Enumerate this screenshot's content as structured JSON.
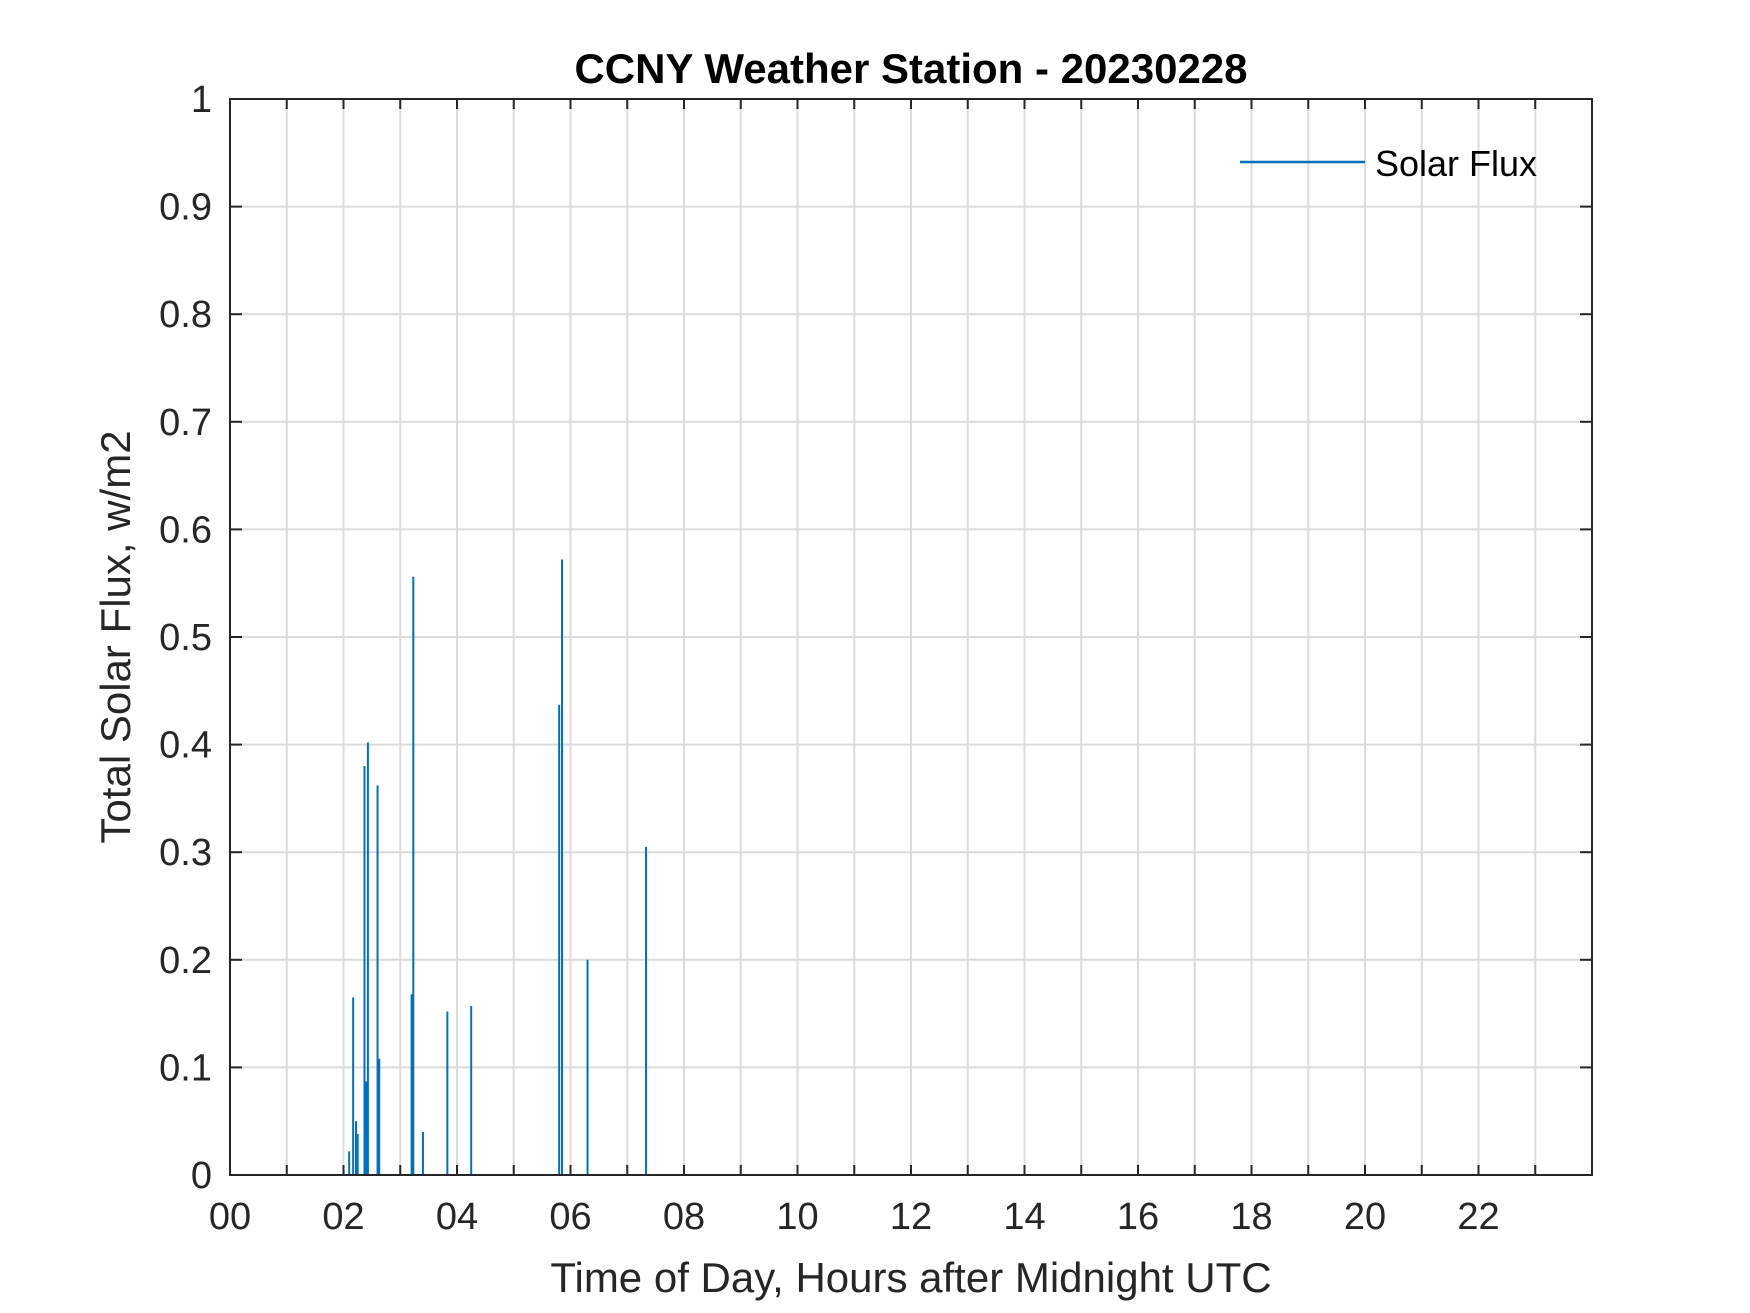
{
  "chart_data": {
    "type": "line",
    "title": "CCNY Weather Station - 20230228",
    "xlabel": "Time of Day, Hours after Midnight UTC",
    "ylabel": "Total Solar Flux, w/m2",
    "xlim": [
      0,
      24
    ],
    "ylim": [
      0,
      1
    ],
    "grid": true,
    "legend_position": "top-right",
    "x_ticks": [
      0,
      2,
      4,
      6,
      8,
      10,
      12,
      14,
      16,
      18,
      20,
      22
    ],
    "x_tick_labels": [
      "00",
      "02",
      "04",
      "06",
      "08",
      "10",
      "12",
      "14",
      "16",
      "18",
      "20",
      "22"
    ],
    "y_ticks": [
      0,
      0.1,
      0.2,
      0.3,
      0.4,
      0.5,
      0.6,
      0.7,
      0.8,
      0.9,
      1
    ],
    "y_tick_labels": [
      "0",
      "0.1",
      "0.2",
      "0.3",
      "0.4",
      "0.5",
      "0.6",
      "0.7",
      "0.8",
      "0.9",
      "1"
    ],
    "series": [
      {
        "name": "Solar Flux",
        "color": "#0072BD",
        "x": [
          2.1,
          2.17,
          2.22,
          2.25,
          2.37,
          2.4,
          2.43,
          2.6,
          2.63,
          3.2,
          3.23,
          3.4,
          3.83,
          4.25,
          5.8,
          5.85,
          6.3,
          7.33
        ],
        "y": [
          0.022,
          0.165,
          0.05,
          0.038,
          0.38,
          0.087,
          0.402,
          0.362,
          0.108,
          0.168,
          0.556,
          0.04,
          0.152,
          0.157,
          0.437,
          0.572,
          0.2,
          0.305
        ]
      }
    ]
  }
}
